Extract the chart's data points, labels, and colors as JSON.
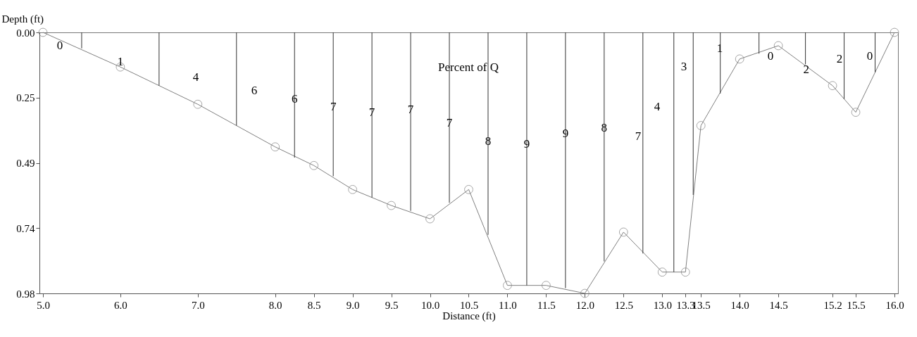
{
  "chart_data": {
    "type": "line",
    "xlabel": "Distance (ft)",
    "ylabel": "Depth (ft)",
    "xlim": [
      5.0,
      16.0
    ],
    "xticks": [
      {
        "value": 5,
        "label": "5.0"
      },
      {
        "value": 6,
        "label": "6.0"
      },
      {
        "value": 7,
        "label": "7.0"
      },
      {
        "value": 8,
        "label": "8.0"
      },
      8.5,
      {
        "value": 9,
        "label": "9.0"
      },
      9.5,
      {
        "value": 10,
        "label": "10.0"
      },
      10.5,
      {
        "value": 11,
        "label": "11.0"
      },
      11.5,
      {
        "value": 12,
        "label": "12.0"
      },
      12.5,
      {
        "value": 13,
        "label": "13.0"
      },
      13.3,
      13.5,
      {
        "value": 14,
        "label": "14.0"
      },
      14.5,
      15.2,
      15.5,
      {
        "value": 16,
        "label": "16.0"
      }
    ],
    "ylim": [
      0.98,
      0.0
    ],
    "yticks": [
      {
        "value": 0,
        "label": "0.00"
      },
      {
        "value": 0.245,
        "label": "0.25"
      },
      0.49,
      {
        "value": 0.735,
        "label": "0.74"
      },
      0.98
    ],
    "grid": false,
    "marker": "circle",
    "line_style": "solid",
    "series": [
      {
        "color": "#808080",
        "x": [
          5.0,
          6.0,
          7.0,
          8.0,
          8.5,
          9.0,
          9.5,
          10.0,
          10.5,
          11.0,
          11.5,
          12.0,
          12.5,
          13.0,
          13.3,
          13.5,
          14.0,
          14.5,
          15.2,
          15.5,
          16.0
        ],
        "values": [
          0.0,
          0.13,
          0.27,
          0.43,
          0.5,
          0.59,
          0.65,
          0.7,
          0.59,
          0.95,
          0.95,
          0.98,
          0.75,
          0.9,
          0.9,
          0.35,
          0.1,
          0.05,
          0.2,
          0.3,
          0.0
        ]
      },
      {
        "type": "bar",
        "color": "#333333",
        "x": [
          5.5,
          6.5,
          7.5,
          8.25,
          8.75,
          9.25,
          9.75,
          10.25,
          10.75,
          11.25,
          11.75,
          12.25,
          12.75,
          13.15,
          13.4,
          13.75,
          14.25,
          14.85,
          15.35,
          15.75
        ],
        "values": [
          0.06,
          0.2,
          0.35,
          0.47,
          0.54,
          0.62,
          0.67,
          0.64,
          0.76,
          0.95,
          0.96,
          0.86,
          0.83,
          0.9,
          0.61,
          0.23,
          0.08,
          0.12,
          0.25,
          0.15
        ]
      }
    ],
    "annotations": [
      "Percent of Q",
      "0",
      {
        "text": "1",
        "x": 6.0,
        "y": 0.11
      },
      "4",
      "6",
      {
        "text": "6",
        "x": 8.25,
        "y": 0.25
      },
      {
        "text": "7",
        "x": 8.75,
        "y": 0.28
      },
      {
        "text": "7",
        "x": 9.25,
        "y": 0.3
      },
      {
        "text": "7",
        "x": 9.75,
        "y": 0.29
      },
      {
        "text": "7",
        "x": 10.25,
        "y": 0.34
      },
      {
        "text": "8",
        "x": 10.75,
        "y": 0.41
      },
      {
        "text": "9",
        "x": 11.25,
        "y": 0.42
      },
      {
        "text": "9",
        "x": 11.75,
        "y": 0.38
      },
      {
        "text": "8",
        "x": 12.25,
        "y": 0.36
      },
      "7",
      "4",
      "3",
      "1",
      "0",
      {
        "text": "2",
        "x": 14.86,
        "y": 0.14
      },
      "2",
      "0"
    ]
  }
}
